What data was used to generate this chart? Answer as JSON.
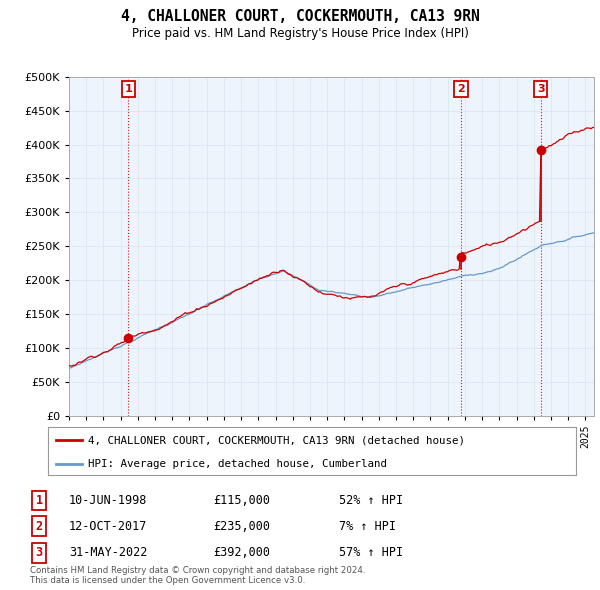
{
  "title": "4, CHALLONER COURT, COCKERMOUTH, CA13 9RN",
  "subtitle": "Price paid vs. HM Land Registry's House Price Index (HPI)",
  "ylim": [
    0,
    500000
  ],
  "yticks": [
    0,
    50000,
    100000,
    150000,
    200000,
    250000,
    300000,
    350000,
    400000,
    450000,
    500000
  ],
  "xlim_start": 1995.0,
  "xlim_end": 2025.5,
  "sale_points": [
    {
      "label": "1",
      "date_num": 1998.44,
      "price": 115000
    },
    {
      "label": "2",
      "date_num": 2017.78,
      "price": 235000
    },
    {
      "label": "3",
      "date_num": 2022.41,
      "price": 392000
    }
  ],
  "sale_table": [
    {
      "num": "1",
      "date": "10-JUN-1998",
      "price": "£115,000",
      "hpi": "52% ↑ HPI"
    },
    {
      "num": "2",
      "date": "12-OCT-2017",
      "price": "£235,000",
      "hpi": "7% ↑ HPI"
    },
    {
      "num": "3",
      "date": "31-MAY-2022",
      "price": "£392,000",
      "hpi": "57% ↑ HPI"
    }
  ],
  "legend_label_red": "4, CHALLONER COURT, COCKERMOUTH, CA13 9RN (detached house)",
  "legend_label_blue": "HPI: Average price, detached house, Cumberland",
  "footer": "Contains HM Land Registry data © Crown copyright and database right 2024.\nThis data is licensed under the Open Government Licence v3.0.",
  "red_color": "#cc0000",
  "blue_color": "#6699cc",
  "grid_color": "#dde8f0",
  "background_color": "#eef4fb"
}
